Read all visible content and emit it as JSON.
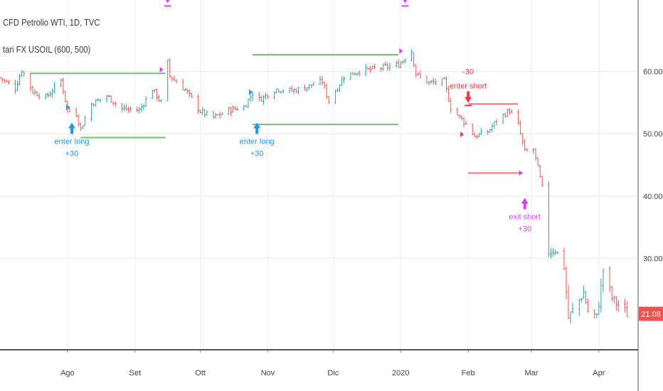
{
  "header": {
    "symbol_line": "CFD Petrolio WTI, 1D, TVC",
    "strategy_line": "tari FX USOIL (600, 500)"
  },
  "chart_data": {
    "type": "candlestick",
    "title": "CFD Petrolio WTI, 1D, TVC",
    "ylim": [
      15.3,
      71.5
    ],
    "y_ticks": [
      30.0,
      40.0,
      50.0,
      60.0
    ],
    "y_tick_labels": [
      "30.00",
      "40.00",
      "50.00",
      "60.00"
    ],
    "x_ticks": [
      "Ago",
      "Set",
      "Ott",
      "Nov",
      "Dic",
      "2020",
      "Feb",
      "Mar",
      "Apr"
    ],
    "x_tick_dates": [
      "2019-08-01",
      "2019-09-01",
      "2019-10-01",
      "2019-11-01",
      "2019-12-01",
      "2020-01-01",
      "2020-02-01",
      "2020-03-01",
      "2020-04-01"
    ],
    "last_price": "21.08",
    "grid": true,
    "series": [
      {
        "name": "",
        "close_points": [
          [
            "2019-07-01",
            59.0
          ],
          [
            "2019-07-08",
            57.3
          ],
          [
            "2019-07-11",
            60.3
          ],
          [
            "2019-07-16",
            56.8
          ],
          [
            "2019-07-22",
            55.8
          ],
          [
            "2019-07-29",
            58.6
          ],
          [
            "2019-08-01",
            53.9
          ],
          [
            "2019-08-05",
            53.2
          ],
          [
            "2019-08-07",
            50.8
          ],
          [
            "2019-08-12",
            54.8
          ],
          [
            "2019-08-19",
            56.1
          ],
          [
            "2019-08-26",
            54.0
          ],
          [
            "2019-09-03",
            53.8
          ],
          [
            "2019-09-09",
            57.2
          ],
          [
            "2019-09-13",
            55.0
          ],
          [
            "2019-09-16",
            61.5
          ],
          [
            "2019-09-17",
            59.3
          ],
          [
            "2019-09-24",
            57.1
          ],
          [
            "2019-10-01",
            53.6
          ],
          [
            "2019-10-07",
            52.6
          ],
          [
            "2019-10-14",
            53.8
          ],
          [
            "2019-10-21",
            54.3
          ],
          [
            "2019-10-25",
            56.6
          ],
          [
            "2019-10-28",
            55.5
          ],
          [
            "2019-11-05",
            57.2
          ],
          [
            "2019-11-12",
            56.9
          ],
          [
            "2019-11-19",
            57.5
          ],
          [
            "2019-11-22",
            58.0
          ],
          [
            "2019-11-26",
            58.4
          ],
          [
            "2019-11-29",
            55.2
          ],
          [
            "2019-12-06",
            59.2
          ],
          [
            "2019-12-13",
            60.1
          ],
          [
            "2019-12-20",
            60.4
          ],
          [
            "2019-12-31",
            61.1
          ],
          [
            "2020-01-06",
            63.3
          ],
          [
            "2020-01-08",
            59.6
          ],
          [
            "2020-01-14",
            58.2
          ],
          [
            "2020-01-21",
            58.4
          ],
          [
            "2020-01-24",
            54.2
          ],
          [
            "2020-01-31",
            51.6
          ],
          [
            "2020-02-04",
            49.6
          ],
          [
            "2020-02-10",
            50.3
          ],
          [
            "2020-02-14",
            52.1
          ],
          [
            "2020-02-20",
            53.8
          ],
          [
            "2020-02-24",
            51.4
          ],
          [
            "2020-02-27",
            47.1
          ],
          [
            "2020-03-02",
            47.5
          ],
          [
            "2020-03-06",
            41.3
          ],
          [
            "2020-03-09",
            31.1
          ],
          [
            "2020-03-12",
            31.5
          ],
          [
            "2020-03-16",
            28.7
          ],
          [
            "2020-03-18",
            20.4
          ],
          [
            "2020-03-25",
            24.5
          ],
          [
            "2020-03-27",
            21.5
          ],
          [
            "2020-03-31",
            20.5
          ],
          [
            "2020-04-02",
            25.3
          ],
          [
            "2020-04-03",
            28.3
          ],
          [
            "2020-04-07",
            23.6
          ],
          [
            "2020-04-09",
            22.8
          ],
          [
            "2020-04-14",
            21.08
          ]
        ]
      }
    ],
    "trade_levels": [
      {
        "color": "#4caf50",
        "value": 59.7,
        "from": "2019-07-15",
        "to": "2019-09-15"
      },
      {
        "color": "#4caf50",
        "value": 49.4,
        "from": "2019-08-07",
        "to": "2019-09-15"
      },
      {
        "color": "#4caf50",
        "value": 62.7,
        "from": "2019-10-25",
        "to": "2019-12-31"
      },
      {
        "color": "#4caf50",
        "value": 51.5,
        "from": "2019-10-25",
        "to": "2019-12-31"
      },
      {
        "color": "#ef5350",
        "value": 54.8,
        "from": "2020-02-01",
        "to": "2020-02-24"
      },
      {
        "color": "#ef5350",
        "value": 43.7,
        "from": "2020-02-01",
        "to": "2020-02-26"
      }
    ],
    "markers": [
      {
        "date": "2019-08-03",
        "value": 51.8,
        "direction": "up",
        "color": "#2196f3",
        "labels": [
          "enter long",
          "+30"
        ]
      },
      {
        "date": "2019-10-27",
        "value": 51.8,
        "direction": "up",
        "color": "#2196f3",
        "labels": [
          "enter long",
          "+30"
        ]
      },
      {
        "date": "2020-02-01",
        "value": 55.0,
        "direction": "down",
        "color": "#f23645",
        "labels": [
          "-30",
          "enter short"
        ]
      },
      {
        "date": "2020-02-27",
        "value": 39.7,
        "direction": "up",
        "color": "#d147e8",
        "labels": [
          "exit short",
          "+30"
        ]
      },
      {
        "date": "2019-09-16",
        "value": 71.0,
        "direction": "down",
        "color": "#d147e8",
        "labels": []
      },
      {
        "date": "2020-01-03",
        "value": 71.0,
        "direction": "down",
        "color": "#d147e8",
        "labels": []
      }
    ],
    "entry_arrows": [
      {
        "date": "2019-08-02",
        "value": 54.3,
        "color": "#2196f3"
      },
      {
        "date": "2019-10-25",
        "value": 56.7,
        "color": "#2196f3"
      },
      {
        "date": "2019-09-14",
        "value": 60.3,
        "color": "#d147e8"
      },
      {
        "date": "2020-01-02",
        "value": 63.3,
        "color": "#d147e8"
      },
      {
        "date": "2020-01-30",
        "value": 49.9,
        "color": "#f23645"
      },
      {
        "date": "2020-02-26",
        "value": 43.7,
        "color": "#d147e8"
      }
    ],
    "colors": {
      "up": "#26a69a",
      "down": "#ef5350",
      "grid": "#e6e6e6",
      "axis": "#555555"
    }
  }
}
